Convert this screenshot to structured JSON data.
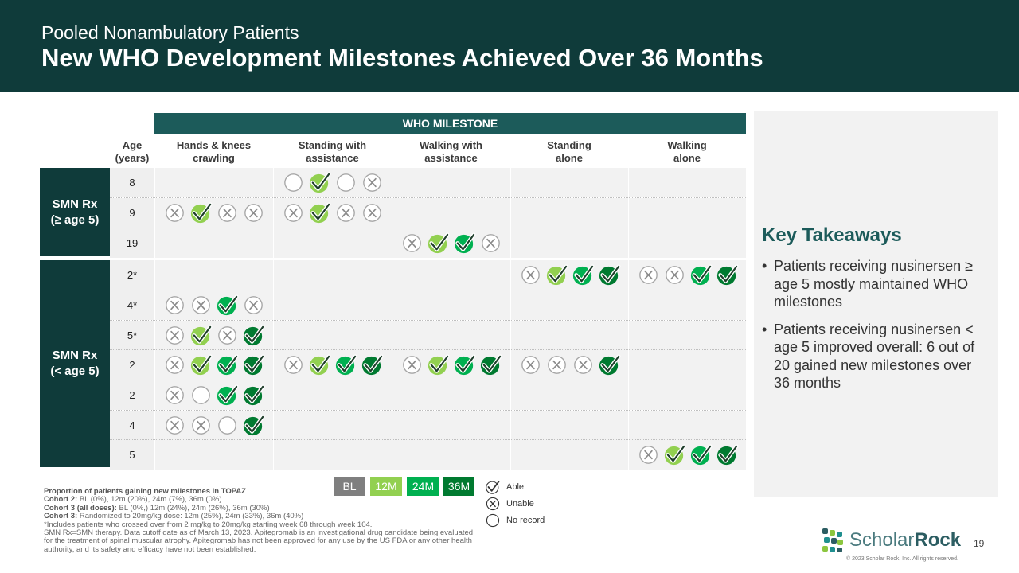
{
  "header": {
    "subtitle": "Pooled Nonambulatory Patients",
    "title": "New WHO Development Milestones Achieved Over 36 Months"
  },
  "table": {
    "banner": "WHO MILESTONE",
    "age_header": [
      "Age",
      "(years)"
    ],
    "milestones": [
      [
        "Hands & knees",
        "crawling"
      ],
      [
        "Standing with",
        "assistance"
      ],
      [
        "Walking with",
        "assistance"
      ],
      [
        "Standing",
        "alone"
      ],
      [
        "Walking",
        "alone"
      ]
    ],
    "groups": [
      {
        "label": [
          "SMN Rx",
          "(≥ age 5)"
        ],
        "rows": [
          {
            "age": "8",
            "cells": [
              [],
              [
                "N",
                "12",
                "N",
                "X"
              ],
              [],
              [],
              []
            ]
          },
          {
            "age": "9",
            "cells": [
              [
                "X",
                "12",
                "X",
                "X"
              ],
              [
                "X",
                "12",
                "X",
                "X"
              ],
              [],
              [],
              []
            ]
          },
          {
            "age": "19",
            "cells": [
              [],
              [],
              [
                "X",
                "12",
                "24",
                "X"
              ],
              [],
              []
            ]
          }
        ]
      },
      {
        "label": [
          "SMN Rx",
          "(< age 5)"
        ],
        "rows": [
          {
            "age": "2*",
            "cells": [
              [],
              [],
              [],
              [
                "X",
                "12",
                "24",
                "36"
              ],
              [
                "X",
                "X",
                "24",
                "36"
              ]
            ]
          },
          {
            "age": "4*",
            "cells": [
              [
                "X",
                "X",
                "24",
                "X"
              ],
              [],
              [],
              [],
              []
            ]
          },
          {
            "age": "5*",
            "cells": [
              [
                "X",
                "12",
                "X",
                "36"
              ],
              [],
              [],
              [],
              []
            ]
          },
          {
            "age": "2",
            "cells": [
              [
                "X",
                "12",
                "24",
                "36"
              ],
              [
                "X",
                "12",
                "24",
                "36"
              ],
              [
                "X",
                "12",
                "24",
                "36"
              ],
              [
                "X",
                "X",
                "X",
                "36"
              ],
              []
            ]
          },
          {
            "age": "2",
            "cells": [
              [
                "X",
                "N",
                "24",
                "36"
              ],
              [],
              [],
              [],
              []
            ]
          },
          {
            "age": "4",
            "cells": [
              [
                "X",
                "X",
                "N",
                "36"
              ],
              [],
              [],
              [],
              []
            ]
          },
          {
            "age": "5",
            "cells": [
              [],
              [],
              [],
              [],
              [
                "X",
                "12",
                "24",
                "36"
              ]
            ]
          }
        ]
      }
    ]
  },
  "legend": {
    "timepoints": [
      {
        "label": "BL",
        "color": "#7f7f7f"
      },
      {
        "label": "12M",
        "color": "#92d050"
      },
      {
        "label": "24M",
        "color": "#00b050"
      },
      {
        "label": "36M",
        "color": "#007a30"
      }
    ],
    "symbols": [
      {
        "icon": "check-icon",
        "label": "Able"
      },
      {
        "icon": "x-icon",
        "label": "Unable"
      },
      {
        "icon": "empty-circle-icon",
        "label": "No record"
      }
    ]
  },
  "takeaways": {
    "title": "Key Takeaways",
    "bullets": [
      "Patients receiving nusinersen ≥ age 5 mostly maintained WHO milestones",
      "Patients receiving nusinersen < age 5 improved overall: 6 out of 20 gained new milestones over 36 months"
    ]
  },
  "footnote": {
    "heading": "Proportion of patients gaining new milestones in TOPAZ",
    "lines": [
      {
        "bold": "Cohort 2: ",
        "text": "BL (0%), 12m (20%), 24m (7%), 36m (0%)"
      },
      {
        "bold": "Cohort 3 (all doses): ",
        "text": "BL (0%,) 12m (24%), 24m (26%), 36m (30%)"
      },
      {
        "bold": "Cohort 3: ",
        "text": "Randomized to 20mg/kg dose: 12m (25%), 24m (33%), 36m (40%)"
      },
      {
        "bold": "",
        "text": "*Includes patients who crossed over from 2 mg/kg to 20mg/kg starting week 68 through week 104."
      },
      {
        "bold": "",
        "text": "SMN Rx=SMN therapy. Data cutoff date as of March 13, 2023. Apitegromab is an investigational drug candidate being evaluated for the treatment of spinal muscular atrophy. Apitegromab has not been approved for any use by the US FDA or any other health authority, and its safety and efficacy have not been established."
      }
    ]
  },
  "brand": {
    "name_light": "Scholar",
    "name_bold": "Rock",
    "page_number": "19",
    "copyright": "© 2023 Scholar Rock, Inc. All rights reserved."
  },
  "colors": {
    "header_bg": "#0f3b3a",
    "accent_teal": "#1c5b5a",
    "bl": "#7f7f7f",
    "m12": "#92d050",
    "m24": "#00b050",
    "m36": "#007a30"
  }
}
